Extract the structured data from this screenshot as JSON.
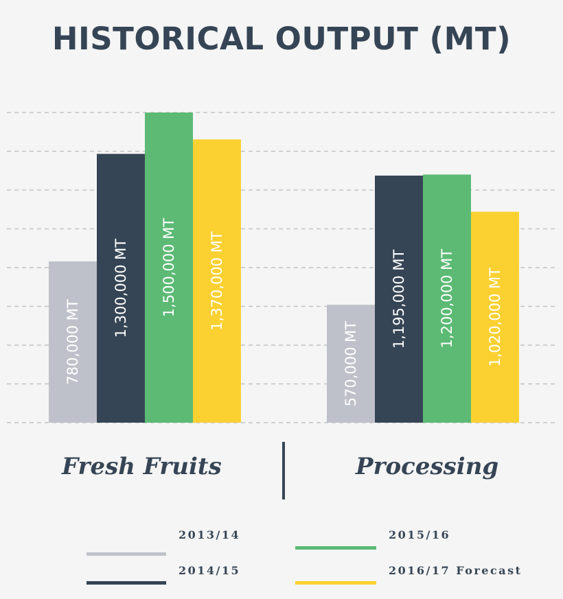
{
  "chart_data": {
    "type": "bar",
    "title": "HISTORICAL OUTPUT (MT)",
    "categories": [
      "Fresh Fruits",
      "Processing"
    ],
    "unit": "MT",
    "ylim": [
      0,
      1500000
    ],
    "grid": true,
    "legend_position": "bottom",
    "series": [
      {
        "name": "2013/14",
        "color": "#bfc1ca",
        "values": [
          780000,
          570000
        ],
        "labels": [
          "780,000 MT",
          "570,000 MT"
        ]
      },
      {
        "name": "2014/15",
        "color": "#364555",
        "values": [
          1300000,
          1195000
        ],
        "labels": [
          "1,300,000 MT",
          "1,195,000 MT"
        ]
      },
      {
        "name": "2015/16",
        "color": "#5cba74",
        "values": [
          1500000,
          1200000
        ],
        "labels": [
          "1,500,000 MT",
          "1,200,000 MT"
        ]
      },
      {
        "name": "2016/17 Forecast",
        "color": "#fbd132",
        "values": [
          1370000,
          1020000
        ],
        "labels": [
          "1,370,000 MT",
          "1,020,000 MT"
        ]
      }
    ]
  }
}
